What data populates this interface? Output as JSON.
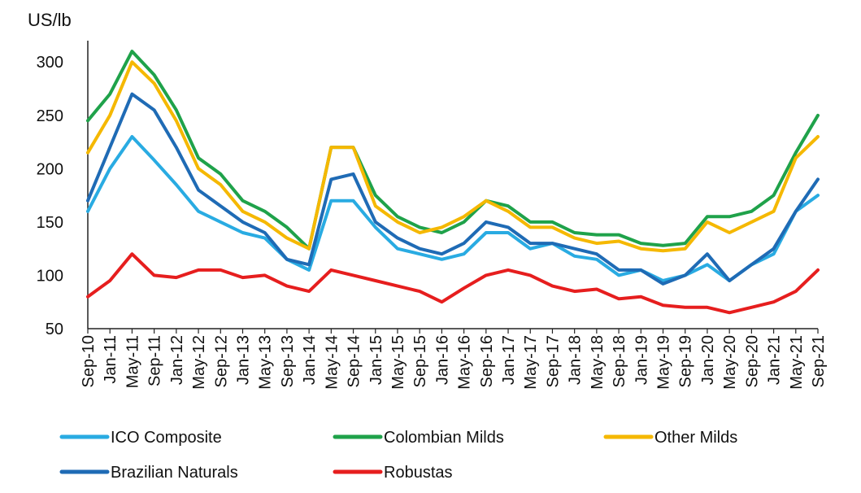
{
  "chart_data": {
    "type": "line",
    "title": "",
    "ylabel": "US/lb",
    "xlabel": "",
    "ylim": [
      50,
      320
    ],
    "yticks": [
      50,
      100,
      150,
      200,
      250,
      300
    ],
    "grid": false,
    "legend_position": "bottom",
    "x_start": "Sep-10",
    "x_end": "Sep-21",
    "categories": [
      "Sep-10",
      "Jan-11",
      "May-11",
      "Sep-11",
      "Jan-12",
      "May-12",
      "Sep-12",
      "Jan-13",
      "May-13",
      "Sep-13",
      "Jan-14",
      "May-14",
      "Sep-14",
      "Jan-15",
      "May-15",
      "Sep-15",
      "Jan-16",
      "May-16",
      "Sep-16",
      "Jan-17",
      "May-17",
      "Sep-17",
      "Jan-18",
      "May-18",
      "Sep-18",
      "Jan-19",
      "May-19",
      "Sep-19",
      "Jan-20",
      "May-20",
      "Sep-20",
      "Jan-21",
      "May-21",
      "Sep-21"
    ],
    "series": [
      {
        "name": "ICO Composite",
        "color": "#29ABE2",
        "values": [
          160,
          200,
          230,
          208,
          185,
          160,
          150,
          140,
          135,
          115,
          105,
          170,
          170,
          145,
          125,
          120,
          115,
          120,
          140,
          140,
          125,
          130,
          118,
          115,
          100,
          105,
          95,
          100,
          110,
          95,
          110,
          120,
          160,
          175
        ]
      },
      {
        "name": "Colombian Milds",
        "color": "#1FA24A",
        "values": [
          245,
          270,
          310,
          288,
          255,
          210,
          195,
          170,
          160,
          145,
          125,
          220,
          220,
          175,
          155,
          145,
          140,
          150,
          170,
          165,
          150,
          150,
          140,
          138,
          138,
          130,
          128,
          130,
          155,
          155,
          160,
          175,
          215,
          250
        ]
      },
      {
        "name": "Other Milds",
        "color": "#F5B800",
        "values": [
          215,
          250,
          300,
          280,
          245,
          200,
          185,
          160,
          150,
          135,
          125,
          220,
          220,
          165,
          150,
          140,
          145,
          155,
          170,
          160,
          145,
          145,
          135,
          130,
          132,
          125,
          123,
          125,
          150,
          140,
          150,
          160,
          210,
          230
        ]
      },
      {
        "name": "Brazilian Naturals",
        "color": "#1F6BB5",
        "values": [
          170,
          220,
          270,
          255,
          220,
          180,
          165,
          150,
          140,
          115,
          110,
          190,
          195,
          150,
          135,
          125,
          120,
          130,
          150,
          145,
          130,
          130,
          125,
          120,
          105,
          105,
          92,
          100,
          120,
          95,
          110,
          125,
          160,
          190
        ]
      },
      {
        "name": "Robustas",
        "color": "#E61E1E",
        "values": [
          80,
          95,
          120,
          100,
          98,
          105,
          105,
          98,
          100,
          90,
          85,
          105,
          100,
          95,
          90,
          85,
          75,
          88,
          100,
          105,
          100,
          90,
          85,
          87,
          78,
          80,
          72,
          70,
          70,
          65,
          70,
          75,
          85,
          105
        ]
      }
    ]
  }
}
